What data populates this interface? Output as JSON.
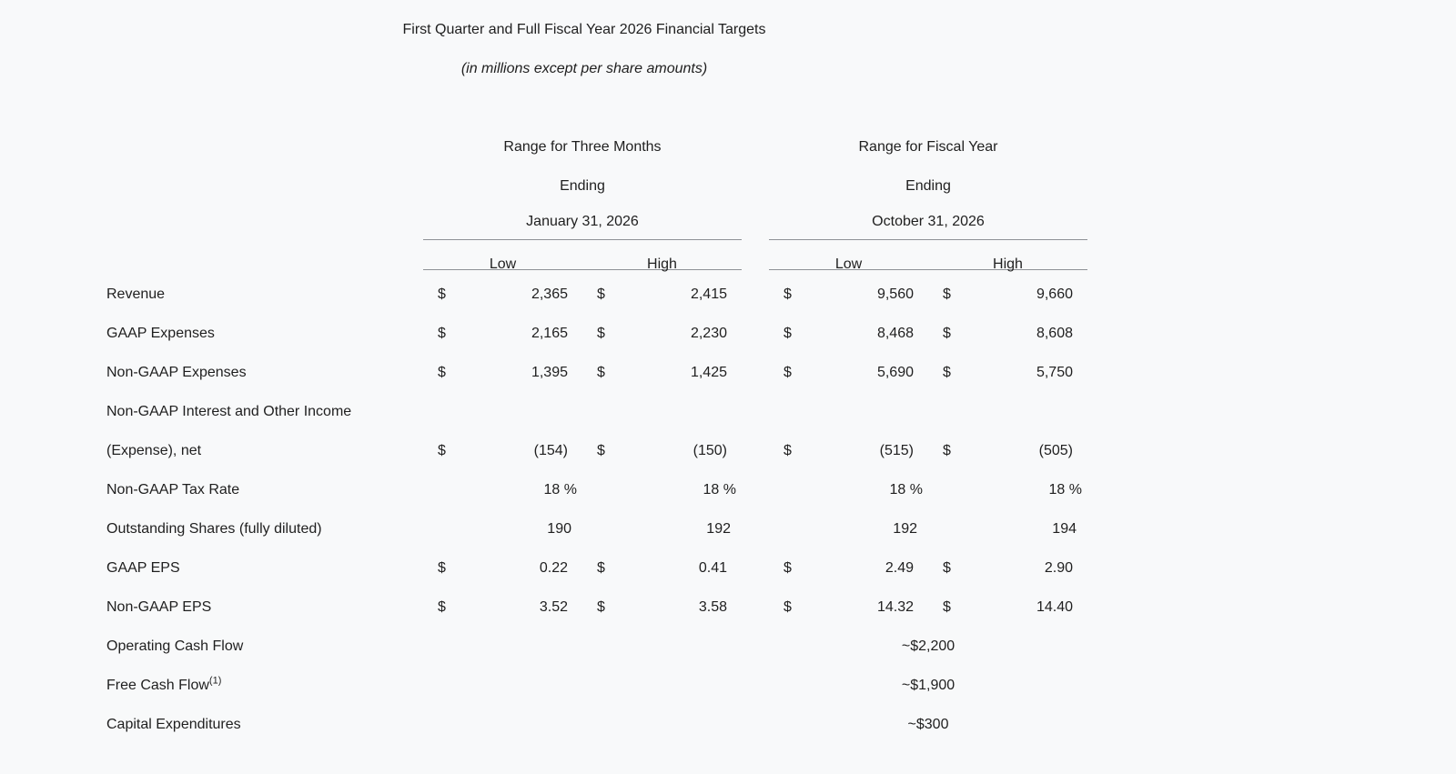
{
  "document": {
    "title": "First Quarter and Full Fiscal Year 2026 Financial Targets",
    "subtitle": "(in millions except per share amounts)"
  },
  "table": {
    "currency_symbol": "$",
    "column_groups": [
      {
        "period_line1": "Range for Three Months",
        "period_line2": "Ending",
        "period_line3": "January 31, 2026",
        "low_label": "Low",
        "high_label": "High"
      },
      {
        "period_line1": "Range for Fiscal Year",
        "period_line2": "Ending",
        "period_line3": "October 31, 2026",
        "low_label": "Low",
        "high_label": "High"
      }
    ],
    "rows": [
      {
        "label": "Revenue",
        "q1_low": "2,365",
        "q1_high": "2,415",
        "fy_low": "9,560",
        "fy_high": "9,660"
      },
      {
        "label": "GAAP Expenses",
        "q1_low": "2,165",
        "q1_high": "2,230",
        "fy_low": "8,468",
        "fy_high": "8,608"
      },
      {
        "label": "Non-GAAP Expenses",
        "q1_low": "1,395",
        "q1_high": "1,425",
        "fy_low": "5,690",
        "fy_high": "5,750"
      },
      {
        "label": "Non-GAAP Interest and Other Income"
      },
      {
        "label": "(Expense), net",
        "q1_low": "(154)",
        "q1_high": "(150)",
        "fy_low": "(515)",
        "fy_high": "(505)"
      },
      {
        "label": "Non-GAAP Tax Rate",
        "q1_low": "18 %",
        "q1_high": "18 %",
        "fy_low": "18 %",
        "fy_high": "18 %"
      },
      {
        "label": "Outstanding Shares (fully diluted)",
        "q1_low": "190",
        "q1_high": "192",
        "fy_low": "192",
        "fy_high": "194"
      },
      {
        "label": "GAAP EPS",
        "q1_low": "0.22",
        "q1_high": "0.41",
        "fy_low": "2.49",
        "fy_high": "2.90"
      },
      {
        "label": "Non-GAAP EPS",
        "q1_low": "3.52",
        "q1_high": "3.58",
        "fy_low": "14.32",
        "fy_high": "14.40"
      },
      {
        "label": "Operating Cash Flow",
        "fy_value": "~$2,200"
      },
      {
        "label": "Free Cash Flow",
        "label_superscript": "(1)",
        "fy_value": "~$1,900"
      },
      {
        "label": "Capital Expenditures",
        "fy_value": "~$300"
      }
    ]
  }
}
